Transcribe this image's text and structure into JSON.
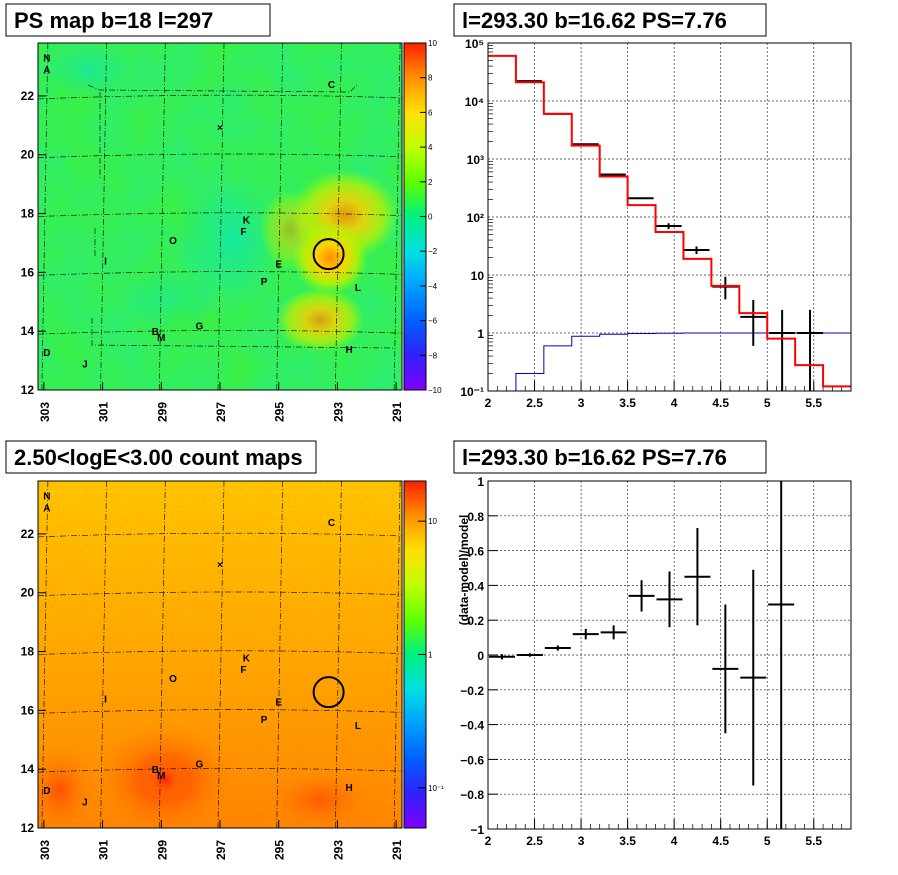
{
  "panels": {
    "ps_map": {
      "title": "PS map b=18 l=297",
      "x_ticks": [
        "303",
        "301",
        "299",
        "297",
        "295",
        "293",
        "291"
      ],
      "y_ticks": [
        "12",
        "14",
        "16",
        "18",
        "20",
        "22"
      ],
      "z_ticks": [
        "10",
        "8",
        "6",
        "4",
        "2",
        "0",
        "−2",
        "−4",
        "−6",
        "−8",
        "−10"
      ],
      "circle": {
        "l": 293.3,
        "b": 16.62
      }
    },
    "count_map": {
      "title": "2.50<logE<3.00 count maps",
      "x_ticks": [
        "303",
        "301",
        "299",
        "297",
        "295",
        "293",
        "291"
      ],
      "y_ticks": [
        "12",
        "14",
        "16",
        "18",
        "20",
        "22"
      ],
      "z_ticks": [
        "10",
        "1",
        "10⁻¹"
      ]
    },
    "spectrum": {
      "title": "l=293.30 b=16.62 PS=7.76",
      "x_ticks": [
        "2",
        "2.5",
        "3",
        "3.5",
        "4",
        "4.5",
        "5",
        "5.5"
      ],
      "y_ticks": [
        "10⁻¹",
        "1",
        "10",
        "10²",
        "10³",
        "10⁴",
        "10⁵"
      ]
    },
    "residual": {
      "title": "l=293.30 b=16.62 PS=7.76",
      "ylabel": "(data-model)/model",
      "x_ticks": [
        "2",
        "2.5",
        "3",
        "3.5",
        "4",
        "4.5",
        "5",
        "5.5"
      ],
      "y_ticks": [
        "1",
        "0.8",
        "0.6",
        "0.4",
        "0.2",
        "0",
        "−0.2",
        "−0.4",
        "−0.6",
        "−0.8",
        "−1"
      ]
    }
  },
  "sources": [
    {
      "label": "N",
      "l": 302.9,
      "b": 23.3
    },
    {
      "label": "A",
      "l": 302.9,
      "b": 22.9
    },
    {
      "label": "C",
      "l": 293.2,
      "b": 22.4
    },
    {
      "label": "K",
      "l": 296.1,
      "b": 17.8
    },
    {
      "label": "F",
      "l": 296.2,
      "b": 17.4
    },
    {
      "label": "O",
      "l": 298.6,
      "b": 17.1
    },
    {
      "label": "I",
      "l": 300.9,
      "b": 16.4
    },
    {
      "label": "E",
      "l": 295.0,
      "b": 16.3
    },
    {
      "label": "P",
      "l": 295.5,
      "b": 15.7
    },
    {
      "label": "L",
      "l": 292.3,
      "b": 15.5
    },
    {
      "label": "G",
      "l": 297.7,
      "b": 14.2
    },
    {
      "label": "B",
      "l": 299.2,
      "b": 14.0
    },
    {
      "label": "M",
      "l": 299.0,
      "b": 13.8
    },
    {
      "label": "D",
      "l": 302.9,
      "b": 13.3
    },
    {
      "label": "J",
      "l": 301.6,
      "b": 12.9
    },
    {
      "label": "H",
      "l": 292.6,
      "b": 13.4
    }
  ],
  "chart_data": [
    {
      "type": "heatmap",
      "title": "PS map b=18 l=297",
      "xlim": [
        303.2,
        290.8
      ],
      "ylim": [
        12,
        23.8
      ],
      "zlim": [
        -10,
        10
      ],
      "hotspots": [
        {
          "l": 293.3,
          "b": 16.6,
          "value": 7.76
        },
        {
          "l": 293.8,
          "b": 17.8,
          "value": 4
        },
        {
          "l": 293.6,
          "b": 14.2,
          "value": 4
        }
      ]
    },
    {
      "type": "heatmap",
      "title": "2.50<logE<3.00 count maps",
      "xlim": [
        303.2,
        290.8
      ],
      "ylim": [
        12,
        23.8
      ],
      "zlog": true,
      "zlim": [
        0.05,
        20
      ],
      "hotspots": [
        {
          "l": 299.2,
          "b": 13.6,
          "value": 20
        }
      ]
    },
    {
      "type": "line",
      "title": "l=293.30 b=16.62 PS=7.76",
      "ylog": true,
      "xlim": [
        2,
        5.9
      ],
      "ylim": [
        0.1,
        100000
      ],
      "grid": true,
      "series": [
        {
          "edges": [
            2,
            2.3,
            2.6,
            2.9,
            3.2,
            3.5,
            3.8,
            4.1,
            4.4,
            4.7,
            5.0,
            5.3,
            5.6,
            5.9
          ],
          "values": [
            60000,
            21000,
            6000,
            1700,
            500,
            160,
            55,
            19,
            6.5,
            2.2,
            0.8,
            0.28,
            0.12
          ],
          "color": "#ff0000"
        },
        {
          "x": [
            2.44,
            2.75,
            3.05,
            3.34,
            3.64,
            3.94,
            4.24,
            4.55,
            4.85,
            5.16,
            5.46
          ],
          "y": [
            22000,
            6000,
            1800,
            540,
            210,
            70,
            27,
            6.3,
            1.9,
            1.0,
            1.0
          ],
          "err": [
            [
              0,
              0
            ],
            [
              0,
              0
            ],
            [
              0,
              0
            ],
            [
              0,
              0
            ],
            [
              0,
              0
            ],
            [
              8,
              8
            ],
            [
              4,
              4
            ],
            [
              2.5,
              3
            ],
            [
              1.3,
              1.8
            ],
            [
              0.9,
              1.5
            ],
            [
              0.9,
              1.5
            ]
          ],
          "color": "#000000"
        },
        {
          "edges": [
            2,
            2.3,
            2.6,
            2.9,
            3.2,
            3.5,
            3.8,
            4.1,
            4.4,
            4.7,
            5.0,
            5.3,
            5.6,
            5.9
          ],
          "values": [
            0.08,
            0.2,
            0.6,
            0.88,
            0.95,
            0.98,
            0.99,
            1.0,
            1.0,
            1.0,
            1.0,
            1.0,
            1.0
          ],
          "color": "#0000cc"
        }
      ]
    },
    {
      "type": "scatter",
      "title": "l=293.30 b=16.62 PS=7.76",
      "ylabel": "(data-model)/model",
      "xlim": [
        2,
        5.9
      ],
      "ylim": [
        -1,
        1
      ],
      "grid": true,
      "x": [
        2.15,
        2.45,
        2.75,
        3.05,
        3.35,
        3.65,
        3.95,
        4.25,
        4.55,
        4.85,
        5.15
      ],
      "y": [
        -0.01,
        0.0,
        0.04,
        0.12,
        0.13,
        0.34,
        0.32,
        0.45,
        -0.08,
        -0.13,
        0.29
      ],
      "yerr": [
        0.015,
        0.01,
        0.015,
        0.03,
        0.04,
        0.09,
        0.16,
        0.28,
        0.37,
        0.62,
        1.3
      ]
    }
  ]
}
